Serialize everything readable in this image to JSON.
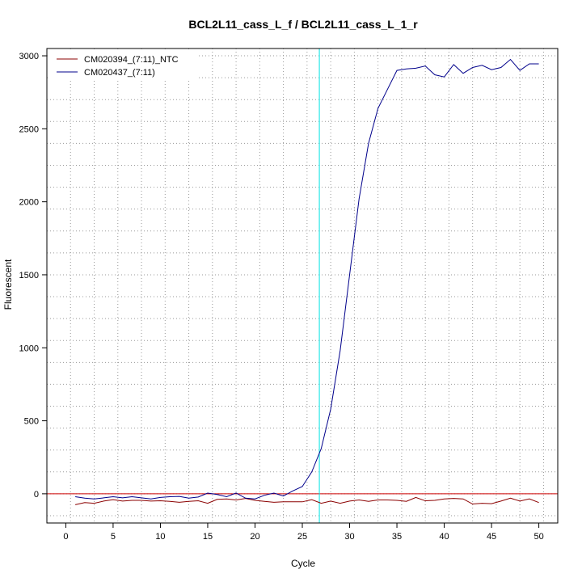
{
  "chart_data": {
    "type": "line",
    "title": "BCL2L11_cass_L_f / BCL2L11_cass_L_1_r",
    "xlabel": "Cycle",
    "ylabel": "Fluorescent",
    "xlim": [
      -2,
      52
    ],
    "ylim": [
      -200,
      3050
    ],
    "x_ticks": [
      0,
      5,
      10,
      15,
      20,
      25,
      30,
      35,
      40,
      45,
      50
    ],
    "y_ticks": [
      0,
      500,
      1000,
      1500,
      2000,
      2500,
      3000
    ],
    "grid": true,
    "legend_position": "top-left",
    "threshold_y": 0,
    "threshold_x": 26.8,
    "threshold_color": "#cc0000",
    "cycle_line_color": "#00e5e5",
    "x": [
      1,
      2,
      3,
      4,
      5,
      6,
      7,
      8,
      9,
      10,
      11,
      12,
      13,
      14,
      15,
      16,
      17,
      18,
      19,
      20,
      21,
      22,
      23,
      24,
      25,
      26,
      27,
      28,
      29,
      30,
      31,
      32,
      33,
      34,
      35,
      36,
      37,
      38,
      39,
      40,
      41,
      42,
      43,
      44,
      45,
      46,
      47,
      48,
      49,
      50
    ],
    "series": [
      {
        "name": "CM020394_(7:11)_NTC",
        "color": "#8b0000",
        "values": [
          -75,
          -60,
          -65,
          -50,
          -40,
          -50,
          -45,
          -45,
          -50,
          -48,
          -52,
          -58,
          -52,
          -48,
          -65,
          -38,
          -35,
          -42,
          -32,
          -45,
          -52,
          -58,
          -55,
          -55,
          -55,
          -40,
          -65,
          -50,
          -65,
          -50,
          -42,
          -52,
          -42,
          -42,
          -45,
          -52,
          -25,
          -48,
          -45,
          -35,
          -32,
          -35,
          -70,
          -65,
          -68,
          -50,
          -30,
          -50,
          -35,
          -60
        ]
      },
      {
        "name": "CM020437_(7:11)",
        "color": "#00008b",
        "values": [
          -20,
          -30,
          -35,
          -28,
          -20,
          -28,
          -20,
          -28,
          -35,
          -25,
          -20,
          -18,
          -30,
          -22,
          5,
          -5,
          -20,
          5,
          -30,
          -35,
          -10,
          5,
          -15,
          20,
          50,
          150,
          310,
          580,
          980,
          1500,
          2020,
          2400,
          2640,
          2770,
          2900,
          2910,
          2915,
          2930,
          2870,
          2855,
          2940,
          2880,
          2920,
          2935,
          2905,
          2920,
          2975,
          2900,
          2945,
          2945
        ]
      }
    ]
  }
}
